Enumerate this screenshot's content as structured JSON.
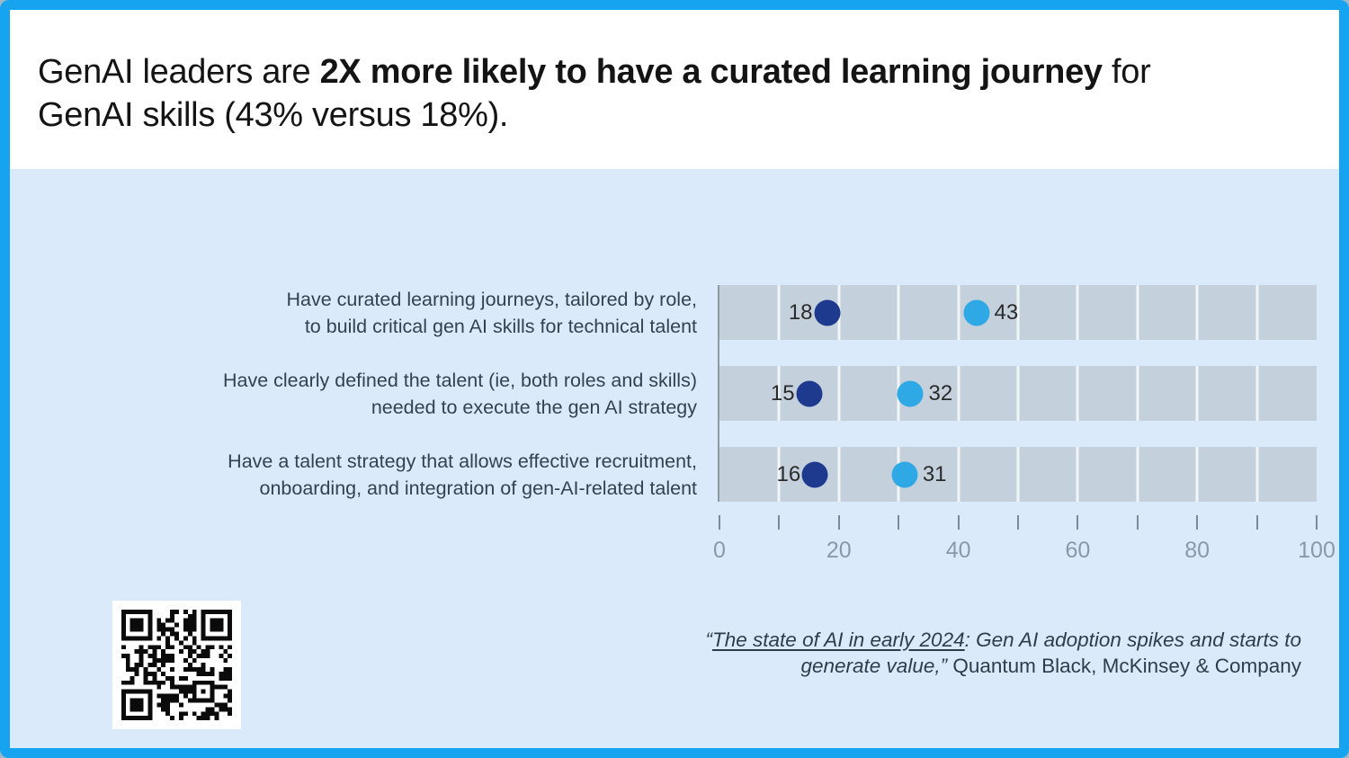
{
  "frame": {
    "border_color": "#16a3f0",
    "body_background": "#dbeafa",
    "header_background": "#ffffff"
  },
  "header": {
    "line1_regular": "GenAI leaders are ",
    "line1_bold": "2X more likely to have a curated learning journey",
    "line1_after": " for",
    "line2": "GenAI skills (43% versus 18%)."
  },
  "chart_data": {
    "type": "scatter",
    "subtype": "horizontal-dot-plot",
    "title": "",
    "xlabel": "",
    "ylabel": "",
    "categories": [
      [
        "Have curated learning journeys, tailored by role,",
        "to build critical gen AI skills for technical talent"
      ],
      [
        "Have clearly defined the talent (ie, both roles and skills)",
        "needed to execute the gen AI strategy"
      ],
      [
        "Have a talent strategy that allows effective recruitment,",
        "onboarding, and integration of gen-AI-related talent"
      ]
    ],
    "series": [
      {
        "name": "dark-blue-dots",
        "color": "#1d3a8f",
        "values": [
          18,
          15,
          16
        ],
        "value_label_side": "left"
      },
      {
        "name": "light-blue-dots",
        "color": "#2fa9e5",
        "values": [
          43,
          32,
          31
        ],
        "value_label_side": "right"
      }
    ],
    "xlim": [
      0,
      100
    ],
    "x_ticks": [
      0,
      10,
      20,
      30,
      40,
      50,
      60,
      70,
      80,
      90,
      100
    ],
    "x_major_labels": [
      "0",
      "20",
      "40",
      "60",
      "80",
      "100"
    ],
    "band_color": "#c4d1dd",
    "gridlines": "vertical white lines every 10 units inside gray bands",
    "legend_position": "none"
  },
  "source": {
    "line1": {
      "open": "“",
      "link": "The state of AI in early 2024",
      "rest": ": Gen AI adoption spikes and starts to"
    },
    "line2": {
      "italic": "generate value,”",
      "plain": " Quantum Black, McKinsey & Company"
    }
  },
  "qr": {
    "label": "qr-code"
  }
}
